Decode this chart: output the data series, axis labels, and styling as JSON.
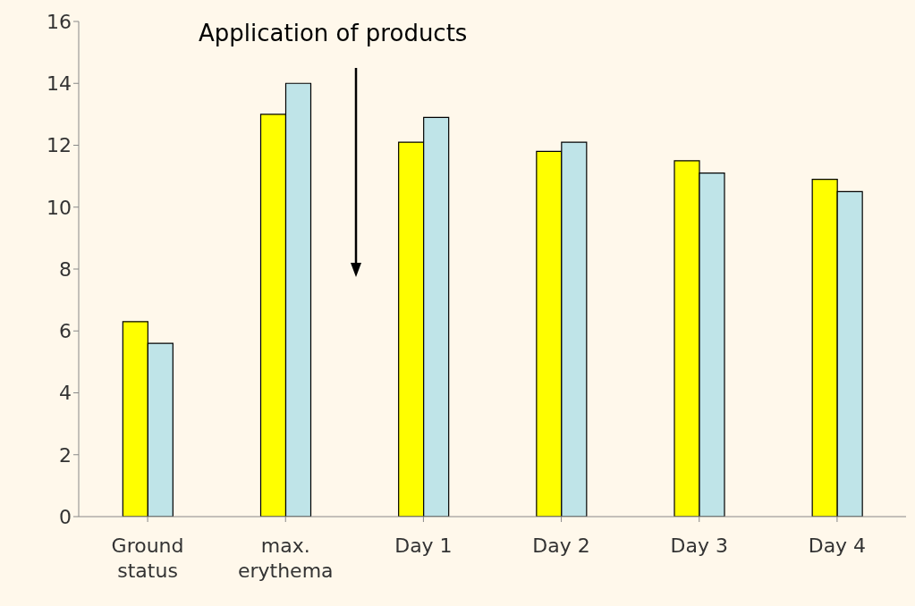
{
  "chart_data": {
    "type": "bar",
    "categories": [
      "Ground status",
      "max. erythema",
      "Day 1",
      "Day 2",
      "Day 3",
      "Day 4"
    ],
    "series": [
      {
        "color": "#ffff00",
        "values": [
          6.3,
          13.0,
          12.1,
          11.8,
          11.5,
          10.9
        ]
      },
      {
        "color": "#bfe4e8",
        "values": [
          5.6,
          14.0,
          12.9,
          12.1,
          11.1,
          10.5
        ]
      }
    ],
    "ylim": [
      0,
      16
    ],
    "yticks": [
      0,
      2,
      4,
      6,
      8,
      10,
      12,
      14,
      16
    ],
    "annotations": [
      "Application of products"
    ]
  }
}
